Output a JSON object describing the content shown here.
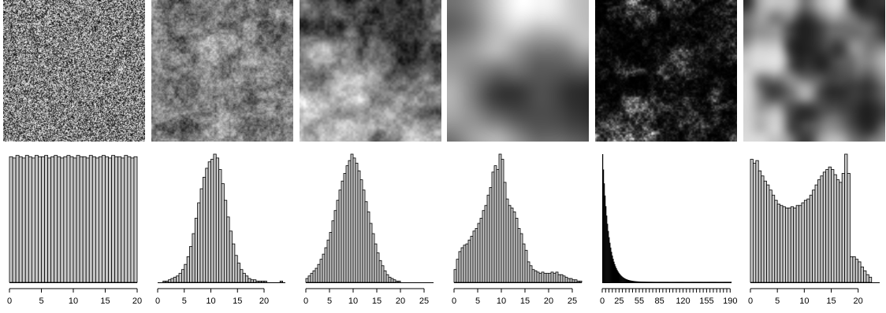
{
  "chart_data": [
    {
      "type": "bar",
      "texture": "white-noise",
      "x_ticks": [
        0,
        5,
        10,
        15,
        20
      ],
      "x_range": [
        0,
        20
      ],
      "bin_width": 0.5,
      "bar_fill": "#c8c8c8",
      "values": [
        0.98,
        0.97,
        0.99,
        0.98,
        0.97,
        0.99,
        0.98,
        0.97,
        0.99,
        0.98,
        0.98,
        0.99,
        0.97,
        0.98,
        0.99,
        0.98,
        0.97,
        0.98,
        0.99,
        0.98,
        0.97,
        0.99,
        0.98,
        0.98,
        0.97,
        0.99,
        0.98,
        0.97,
        0.98,
        0.99,
        0.98,
        0.97,
        0.99,
        0.98,
        0.98,
        0.97,
        0.99,
        0.98,
        0.97,
        0.98
      ]
    },
    {
      "type": "bar",
      "texture": "fine-clouds",
      "x_ticks": [
        0,
        5,
        10,
        15,
        20
      ],
      "x_range": [
        0,
        24
      ],
      "bin_width": 0.5,
      "bar_fill": "#c8c8c8",
      "values": [
        0.0,
        0.0,
        0.01,
        0.01,
        0.02,
        0.03,
        0.04,
        0.05,
        0.07,
        0.1,
        0.14,
        0.2,
        0.28,
        0.38,
        0.5,
        0.62,
        0.73,
        0.82,
        0.89,
        0.94,
        0.96,
        1.0,
        0.97,
        0.88,
        0.77,
        0.64,
        0.51,
        0.4,
        0.3,
        0.21,
        0.15,
        0.1,
        0.07,
        0.05,
        0.03,
        0.02,
        0.02,
        0.01,
        0.01,
        0.01,
        0.01,
        0.0,
        0.0,
        0.0,
        0.0,
        0.0,
        0.01,
        0.0
      ]
    },
    {
      "type": "bar",
      "texture": "soft-clouds",
      "x_ticks": [
        0,
        5,
        10,
        15,
        20,
        25
      ],
      "x_range": [
        0,
        27
      ],
      "bin_width": 0.5,
      "bar_fill": "#c8c8c8",
      "values": [
        0.03,
        0.05,
        0.07,
        0.09,
        0.11,
        0.14,
        0.18,
        0.22,
        0.27,
        0.33,
        0.39,
        0.48,
        0.56,
        0.64,
        0.72,
        0.79,
        0.85,
        0.91,
        0.95,
        1.0,
        0.97,
        0.93,
        0.87,
        0.8,
        0.72,
        0.63,
        0.55,
        0.46,
        0.38,
        0.3,
        0.23,
        0.17,
        0.13,
        0.09,
        0.06,
        0.04,
        0.03,
        0.02,
        0.01,
        0.01,
        0.0,
        0.0,
        0.0,
        0.0,
        0.0,
        0.0,
        0.0,
        0.0,
        0.0,
        0.0,
        0.0,
        0.0,
        0.0,
        0.0
      ]
    },
    {
      "type": "bar",
      "texture": "smooth-gradient",
      "x_ticks": [
        0,
        5,
        10,
        15,
        20,
        25
      ],
      "x_range": [
        0,
        27
      ],
      "bin_width": 0.5,
      "bar_fill": "#c8c8c8",
      "values": [
        0.1,
        0.18,
        0.24,
        0.27,
        0.29,
        0.3,
        0.33,
        0.36,
        0.4,
        0.42,
        0.46,
        0.5,
        0.56,
        0.6,
        0.68,
        0.74,
        0.86,
        0.91,
        0.88,
        1.0,
        0.96,
        0.78,
        0.65,
        0.6,
        0.58,
        0.55,
        0.5,
        0.42,
        0.38,
        0.3,
        0.25,
        0.16,
        0.13,
        0.1,
        0.09,
        0.08,
        0.07,
        0.08,
        0.07,
        0.07,
        0.07,
        0.08,
        0.07,
        0.08,
        0.06,
        0.06,
        0.05,
        0.04,
        0.03,
        0.03,
        0.02,
        0.02,
        0.01,
        0.01
      ]
    },
    {
      "type": "bar",
      "texture": "dark-sparse",
      "x_tick_labels": [
        0,
        25,
        55,
        85,
        120,
        155,
        190
      ],
      "x_range": [
        0,
        192
      ],
      "minor_tick_step": 5,
      "bar_fill": "#000000",
      "distribution": "exponential-decay",
      "peak_fraction": 1.0,
      "decay_rate": 0.11
    },
    {
      "type": "bar",
      "texture": "large-blobs",
      "x_ticks": [
        0,
        5,
        10,
        15,
        20
      ],
      "x_range": [
        0,
        24
      ],
      "bin_width": 0.5,
      "bar_fill": "#c8c8c8",
      "values": [
        0.96,
        0.93,
        0.95,
        0.87,
        0.83,
        0.79,
        0.76,
        0.72,
        0.68,
        0.64,
        0.61,
        0.6,
        0.59,
        0.58,
        0.58,
        0.59,
        0.58,
        0.6,
        0.6,
        0.62,
        0.64,
        0.65,
        0.68,
        0.72,
        0.76,
        0.8,
        0.83,
        0.86,
        0.88,
        0.9,
        0.88,
        0.84,
        0.8,
        0.78,
        0.85,
        1.0,
        0.85,
        0.2,
        0.2,
        0.18,
        0.16,
        0.12,
        0.09,
        0.06,
        0.04
      ]
    }
  ]
}
